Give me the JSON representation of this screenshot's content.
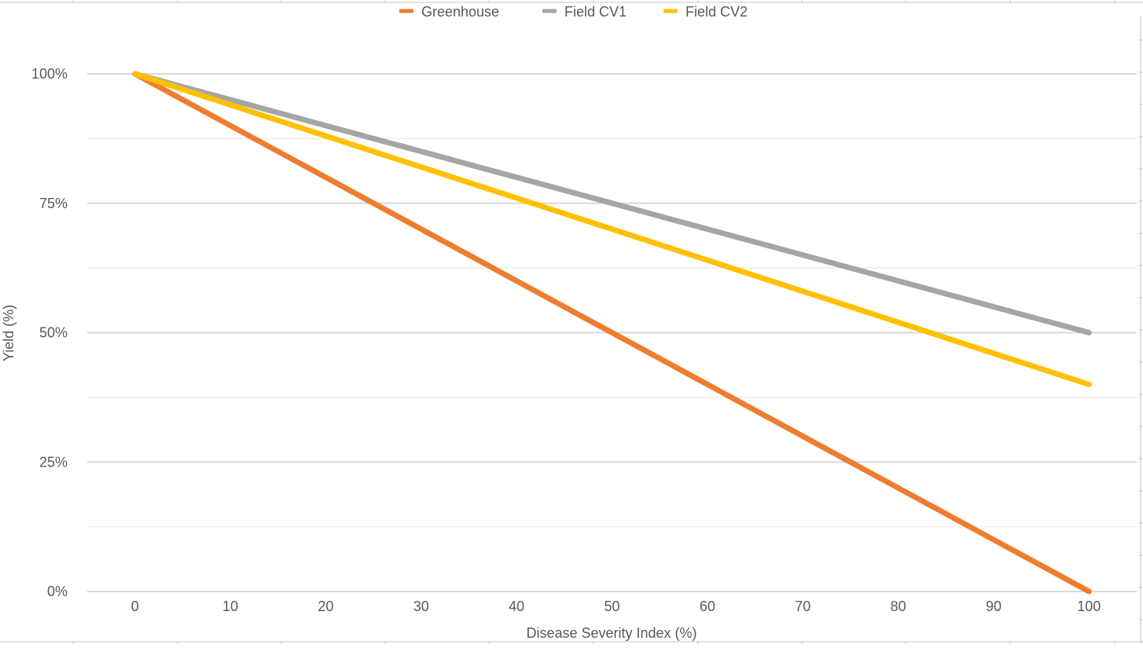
{
  "chart_data": {
    "type": "line",
    "xlabel": "Disease Severity Index (%)",
    "ylabel": "Yield (%)",
    "x": [
      0,
      100
    ],
    "x_ticks": [
      0,
      10,
      20,
      30,
      40,
      50,
      60,
      70,
      80,
      90,
      100
    ],
    "y_ticks": [
      0,
      25,
      50,
      75,
      100
    ],
    "y_tick_labels": [
      "0%",
      "25%",
      "50%",
      "75%",
      "100%"
    ],
    "xlim": [
      -5,
      105
    ],
    "ylim": [
      0,
      100
    ],
    "grid": true,
    "legend_position": "top",
    "series": [
      {
        "name": "Greenhouse",
        "color": "#ED7D31",
        "x": [
          0,
          100
        ],
        "values": [
          100,
          0
        ]
      },
      {
        "name": "Field CV1",
        "color": "#A5A5A5",
        "x": [
          0,
          100
        ],
        "values": [
          100,
          50
        ]
      },
      {
        "name": "Field CV2",
        "color": "#FFC000",
        "x": [
          0,
          100
        ],
        "values": [
          100,
          40
        ]
      }
    ]
  }
}
